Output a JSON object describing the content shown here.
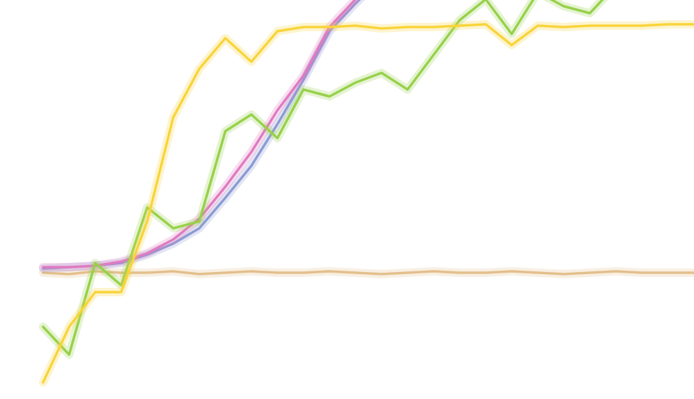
{
  "chart_data": {
    "type": "line",
    "x": [
      0,
      4,
      8,
      12,
      16,
      20,
      24,
      28,
      32,
      36,
      40,
      44,
      48,
      52,
      56,
      60,
      64,
      68,
      72,
      76,
      80,
      84,
      88,
      92,
      96,
      100
    ],
    "xlim": [
      0,
      100
    ],
    "ylim": [
      -0.91,
      1.965
    ],
    "series": [
      {
        "name": "tan",
        "color": "#e3bf8c",
        "values": [
          0.0,
          -0.01,
          0.01,
          0.0,
          0.0,
          0.01,
          -0.01,
          0.0,
          0.01,
          0.0,
          0.0,
          0.01,
          0.0,
          -0.01,
          0.0,
          0.01,
          0.0,
          0.0,
          0.01,
          0.0,
          -0.01,
          0.0,
          0.01,
          0.0,
          0.0,
          0.0
        ]
      },
      {
        "name": "blue",
        "color": "#8c9bd4",
        "values": [
          0.03,
          0.04,
          0.05,
          0.07,
          0.13,
          0.21,
          0.32,
          0.54,
          0.77,
          1.07,
          1.39,
          1.74,
          1.94,
          2.12,
          null,
          null,
          null,
          null,
          null,
          null,
          null,
          null,
          null,
          null,
          null,
          null
        ]
      },
      {
        "name": "pink",
        "color": "#e07bc0",
        "values": [
          0.04,
          0.04,
          0.05,
          0.08,
          0.14,
          0.24,
          0.39,
          0.62,
          0.87,
          1.17,
          1.42,
          1.77,
          1.97,
          2.12,
          null,
          null,
          null,
          null,
          null,
          null,
          null,
          null,
          null,
          null,
          null,
          null
        ]
      },
      {
        "name": "green",
        "color": "#97d14a",
        "values": [
          -0.39,
          -0.59,
          0.07,
          -0.09,
          0.47,
          0.32,
          0.37,
          1.02,
          1.14,
          0.97,
          1.32,
          1.27,
          1.37,
          1.44,
          1.32,
          1.57,
          1.82,
          1.97,
          1.72,
          2.02,
          1.92,
          1.87,
          2.07,
          2.07,
          2.07,
          2.07
        ]
      },
      {
        "name": "yellow",
        "color": "#f9d43a",
        "values": [
          -0.79,
          -0.39,
          -0.14,
          -0.14,
          0.37,
          1.12,
          1.47,
          1.69,
          1.52,
          1.74,
          1.77,
          1.77,
          1.78,
          1.76,
          1.77,
          1.77,
          1.78,
          1.79,
          1.64,
          1.78,
          1.77,
          1.78,
          1.78,
          1.78,
          1.79,
          1.79
        ]
      }
    ]
  }
}
